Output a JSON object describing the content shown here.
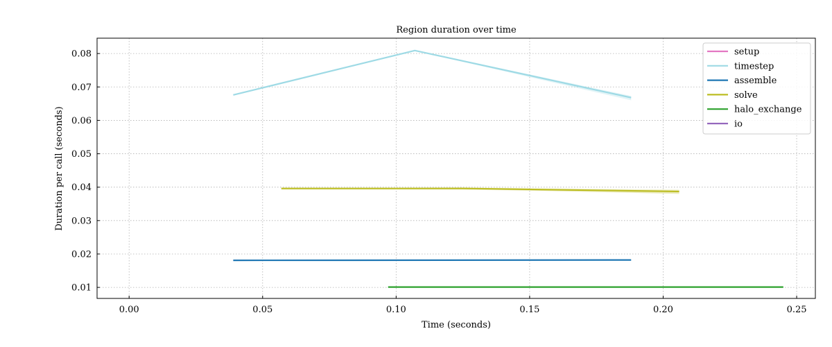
{
  "chart_data": {
    "type": "line",
    "title": "Region duration over time",
    "xlabel": "Time (seconds)",
    "ylabel": "Duration per call (seconds)",
    "xlim": [
      -0.012,
      0.257
    ],
    "ylim": [
      0.0067,
      0.0846
    ],
    "xticks": [
      0.0,
      0.05,
      0.1,
      0.15,
      0.2,
      0.25
    ],
    "xtick_labels": [
      "0.00",
      "0.05",
      "0.10",
      "0.15",
      "0.20",
      "0.25"
    ],
    "yticks": [
      0.01,
      0.02,
      0.03,
      0.04,
      0.05,
      0.06,
      0.07,
      0.08
    ],
    "ytick_labels": [
      "0.01",
      "0.02",
      "0.03",
      "0.04",
      "0.05",
      "0.06",
      "0.07",
      "0.08"
    ],
    "grid": true,
    "legend_position": "top-right",
    "series": [
      {
        "name": "setup",
        "color": "#e377c2",
        "x": [],
        "y": [],
        "band": []
      },
      {
        "name": "timestep",
        "color": "#9edae5",
        "x": [
          0.039,
          0.107,
          0.188
        ],
        "y": [
          0.0676,
          0.0809,
          0.0668
        ],
        "band": [
          [
            0.0676,
            0.0676
          ],
          [
            0.0808,
            0.081
          ],
          [
            0.066,
            0.0673
          ]
        ]
      },
      {
        "name": "assemble",
        "color": "#1f77b4",
        "x": [
          0.039,
          0.188
        ],
        "y": [
          0.0181,
          0.0182
        ],
        "band": [
          [
            0.018,
            0.0182
          ],
          [
            0.0181,
            0.0183
          ]
        ]
      },
      {
        "name": "solve",
        "color": "#bcbd22",
        "x": [
          0.057,
          0.125,
          0.206
        ],
        "y": [
          0.0396,
          0.0396,
          0.0387
        ],
        "band": [
          [
            0.0395,
            0.0397
          ],
          [
            0.0394,
            0.0399
          ],
          [
            0.038,
            0.0392
          ]
        ]
      },
      {
        "name": "halo_exchange",
        "color": "#2ca02c",
        "x": [
          0.097,
          0.245
        ],
        "y": [
          0.0101,
          0.0101
        ],
        "band": [
          [
            0.01,
            0.0102
          ],
          [
            0.01,
            0.0102
          ]
        ]
      },
      {
        "name": "io",
        "color": "#9467bd",
        "x": [],
        "y": [],
        "band": []
      }
    ]
  }
}
